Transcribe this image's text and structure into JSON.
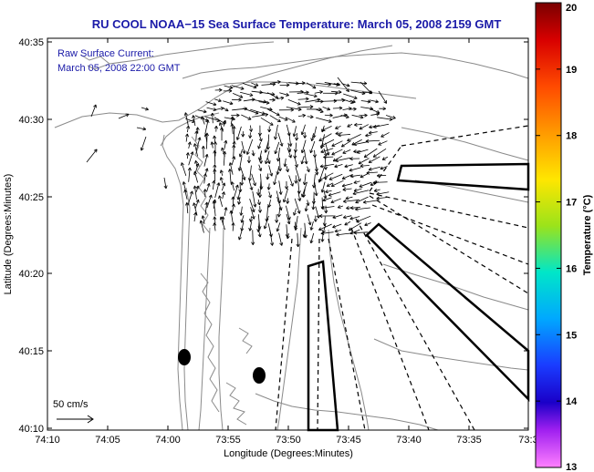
{
  "title": "RU COOL  NOAA−15  Sea Surface Temperature:  March 05, 2008 2159 GMT",
  "annotation": {
    "line1": "Raw Surface Current:",
    "line2": "March 05, 2008 22:00 GMT"
  },
  "scale_label": "50 cm/s",
  "axes": {
    "xlabel": "Longitude (Degrees:Minutes)",
    "ylabel": "Latitude (Degrees:Minutes)",
    "x_ticks": [
      "74:10",
      "74:05",
      "74:00",
      "73:55",
      "73:50",
      "73:45",
      "73:40",
      "73:35",
      "73:3"
    ],
    "y_ticks": [
      "40:35",
      "40:30",
      "40:25",
      "40:20",
      "40:15",
      "40:10"
    ]
  },
  "colorbar": {
    "label": "Temperature (°C)",
    "min": 13,
    "max": 20,
    "ticks": [
      "20",
      "19",
      "18",
      "17",
      "16",
      "15",
      "14",
      "13"
    ]
  },
  "colors": {
    "title": "#1a1aa8",
    "contour": "#8a8a8a",
    "vectors": "#000000"
  }
}
